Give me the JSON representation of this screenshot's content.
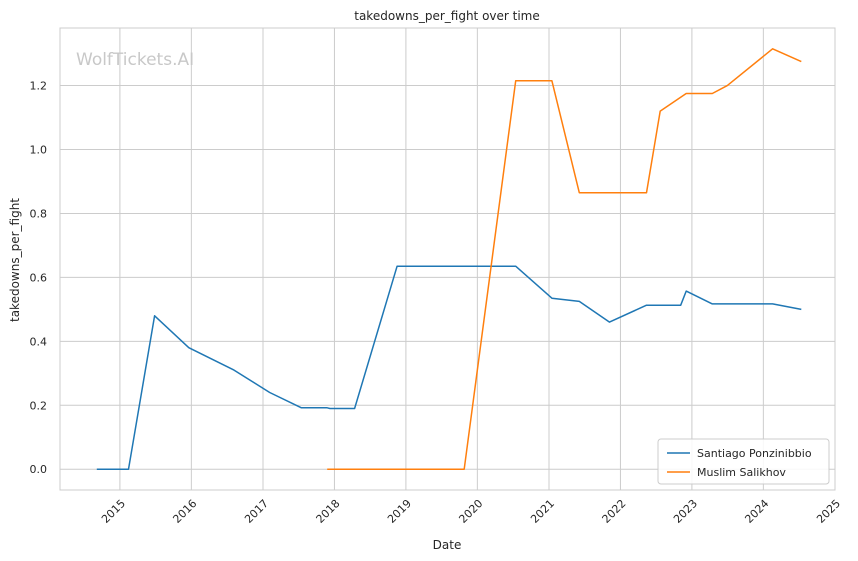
{
  "chart_data": {
    "type": "line",
    "title": "takedowns_per_fight over time",
    "xlabel": "Date",
    "ylabel": "takedowns_per_fight",
    "watermark": "WolfTickets.AI",
    "x_ticks": [
      "2015",
      "2016",
      "2017",
      "2018",
      "2019",
      "2020",
      "2021",
      "2022",
      "2023",
      "2024",
      "2025"
    ],
    "y_ticks": [
      "0.0",
      "0.2",
      "0.4",
      "0.6",
      "0.8",
      "1.0",
      "1.2"
    ],
    "xlim": [
      "2014-03-01",
      "2025-01-01"
    ],
    "ylim": [
      -0.065,
      1.38
    ],
    "grid": true,
    "legend_position": "bottom-right",
    "series": [
      {
        "name": "Santiago Ponzinibbio",
        "color": "#1f77b4",
        "points": [
          [
            "2014-09-05",
            0.0
          ],
          [
            "2015-02-14",
            0.0
          ],
          [
            "2015-06-27",
            0.48
          ],
          [
            "2015-12-19",
            0.38
          ],
          [
            "2016-08-06",
            0.31
          ],
          [
            "2017-02-04",
            0.24
          ],
          [
            "2017-07-16",
            0.192
          ],
          [
            "2017-11-25",
            0.192
          ],
          [
            "2017-12-09",
            0.19
          ],
          [
            "2018-04-14",
            0.19
          ],
          [
            "2018-11-17",
            0.635
          ],
          [
            "2020-07-15",
            0.635
          ],
          [
            "2021-01-16",
            0.535
          ],
          [
            "2021-06-05",
            0.525
          ],
          [
            "2021-11-06",
            0.46
          ],
          [
            "2022-05-14",
            0.513
          ],
          [
            "2022-11-05",
            0.513
          ],
          [
            "2022-12-03",
            0.557
          ],
          [
            "2023-04-15",
            0.517
          ],
          [
            "2024-02-17",
            0.517
          ],
          [
            "2024-07-13",
            0.5
          ]
        ]
      },
      {
        "name": "Muslim Salikhov",
        "color": "#ff7f0e",
        "points": [
          [
            "2017-11-25",
            0.0
          ],
          [
            "2019-10-26",
            0.0
          ],
          [
            "2020-07-15",
            1.215
          ],
          [
            "2021-01-16",
            1.215
          ],
          [
            "2021-06-05",
            0.865
          ],
          [
            "2022-05-14",
            0.865
          ],
          [
            "2022-07-23",
            1.12
          ],
          [
            "2022-12-03",
            1.175
          ],
          [
            "2023-04-15",
            1.175
          ],
          [
            "2023-07-01",
            1.2
          ],
          [
            "2024-02-17",
            1.315
          ],
          [
            "2024-07-13",
            1.275
          ]
        ]
      }
    ]
  }
}
